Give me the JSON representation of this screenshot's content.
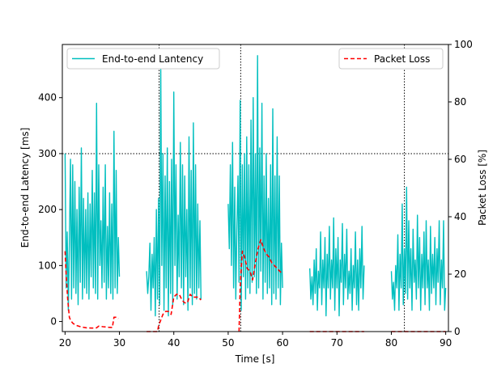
{
  "chart_data": {
    "type": "line",
    "xlabel": "Time [s]",
    "ylabel_left": "End-to-end Latency [ms]",
    "ylabel_right": "Packet Loss [%]",
    "xlim": [
      19.5,
      90.5
    ],
    "ylim_left": [
      -18,
      495
    ],
    "ylim_right": [
      0,
      100
    ],
    "x_ticks": [
      20,
      30,
      40,
      50,
      60,
      70,
      80,
      90
    ],
    "y_ticks_left": [
      0,
      100,
      200,
      300,
      400
    ],
    "y_ticks_right": [
      0,
      20,
      40,
      60,
      80,
      100
    ],
    "reference_lines": {
      "horizontal_latency_ms": 300,
      "vertical_time_s": [
        37.3,
        52.3,
        82.4
      ]
    },
    "legend": {
      "left": {
        "label": "End-to-end Lantency",
        "placement": "upper-left"
      },
      "right": {
        "label": "Packet Loss",
        "placement": "upper-right"
      }
    },
    "colors": {
      "latency": "#00bfbf",
      "loss": "#ff0000",
      "reference": "#000000"
    },
    "series": [
      {
        "name": "End-to-end Lantency",
        "axis": "left",
        "segments": [
          {
            "x": [
              20.0,
              20.2,
              20.4,
              20.6,
              20.8,
              21.0,
              21.2,
              21.4,
              21.6,
              21.8,
              22.0,
              22.2,
              22.4,
              22.6,
              22.8,
              23.0,
              23.2,
              23.4,
              23.6,
              23.8,
              24.0,
              24.2,
              24.4,
              24.6,
              24.8,
              25.0,
              25.2,
              25.4,
              25.6,
              25.8,
              26.0,
              26.2,
              26.4,
              26.6,
              26.8,
              27.0,
              27.2,
              27.4,
              27.6,
              27.8,
              28.0,
              28.2,
              28.4,
              28.6,
              28.8,
              29.0,
              29.2,
              29.4,
              29.6,
              29.8,
              30.0
            ],
            "y": [
              300,
              60,
              160,
              20,
              140,
              290,
              40,
              280,
              60,
              250,
              50,
              200,
              30,
              240,
              70,
              310,
              40,
              220,
              60,
              200,
              50,
              230,
              40,
              210,
              80,
              270,
              60,
              230,
              50,
              390,
              40,
              280,
              100,
              180,
              60,
              240,
              70,
              280,
              40,
              170,
              60,
              230,
              50,
              210,
              40,
              340,
              60,
              270,
              50,
              150,
              80
            ]
          },
          {
            "x": [
              35.0,
              35.2,
              35.4,
              35.6,
              35.8,
              36.0,
              36.2,
              36.4,
              36.6,
              36.8,
              37.0,
              37.2,
              37.4,
              37.6,
              37.8,
              38.0,
              38.2,
              38.4,
              38.6,
              38.8,
              39.0,
              39.2,
              39.4,
              39.6,
              39.8,
              40.0,
              40.2,
              40.4,
              40.6,
              40.8,
              41.0,
              41.2,
              41.4,
              41.6,
              41.8,
              42.0,
              42.2,
              42.4,
              42.6,
              42.8,
              43.0,
              43.2,
              43.4,
              43.6,
              43.8,
              44.0,
              44.2,
              44.4,
              44.6,
              44.8,
              45.0
            ],
            "y": [
              90,
              50,
              80,
              140,
              20,
              120,
              60,
              150,
              10,
              200,
              40,
              220,
              30,
              450,
              100,
              300,
              20,
              260,
              60,
              310,
              10,
              250,
              50,
              290,
              30,
              410,
              100,
              280,
              40,
              190,
              80,
              320,
              60,
              280,
              30,
              260,
              80,
              200,
              20,
              330,
              60,
              270,
              30,
              355,
              50,
              280,
              40,
              210,
              60,
              180,
              40
            ]
          },
          {
            "x": [
              50.0,
              50.2,
              50.4,
              50.6,
              50.8,
              51.0,
              51.2,
              51.4,
              51.6,
              51.8,
              52.0,
              52.2,
              52.4,
              52.6,
              52.8,
              53.0,
              53.2,
              53.4,
              53.6,
              53.8,
              54.0,
              54.2,
              54.4,
              54.6,
              54.8,
              55.0,
              55.2,
              55.4,
              55.6,
              55.8,
              56.0,
              56.2,
              56.4,
              56.6,
              56.8,
              57.0,
              57.2,
              57.4,
              57.6,
              57.8,
              58.0,
              58.2,
              58.4,
              58.6,
              58.8,
              59.0,
              59.2,
              59.4,
              59.6,
              59.8,
              60.0
            ],
            "y": [
              210,
              130,
              280,
              100,
              320,
              60,
              240,
              40,
              170,
              260,
              70,
              395,
              20,
              280,
              80,
              300,
              40,
              330,
              60,
              280,
              50,
              360,
              70,
              400,
              80,
              300,
              50,
              475,
              60,
              310,
              90,
              390,
              40,
              260,
              70,
              300,
              50,
              220,
              60,
              280,
              30,
              380,
              50,
              260,
              40,
              330,
              60,
              260,
              30,
              140,
              60
            ]
          },
          {
            "x": [
              65.0,
              65.2,
              65.4,
              65.6,
              65.8,
              66.0,
              66.2,
              66.4,
              66.6,
              66.8,
              67.0,
              67.2,
              67.4,
              67.6,
              67.8,
              68.0,
              68.2,
              68.4,
              68.6,
              68.8,
              69.0,
              69.2,
              69.4,
              69.6,
              69.8,
              70.0,
              70.2,
              70.4,
              70.6,
              70.8,
              71.0,
              71.2,
              71.4,
              71.6,
              71.8,
              72.0,
              72.2,
              72.4,
              72.6,
              72.8,
              73.0,
              73.2,
              73.4,
              73.6,
              73.8,
              74.0,
              74.2,
              74.4,
              74.6,
              74.8,
              75.0
            ],
            "y": [
              95,
              40,
              80,
              30,
              110,
              50,
              130,
              20,
              90,
              60,
              160,
              30,
              110,
              60,
              150,
              10,
              120,
              60,
              170,
              40,
              110,
              60,
              185,
              20,
              130,
              60,
              150,
              10,
              110,
              70,
              175,
              30,
              120,
              60,
              165,
              40,
              90,
              50,
              130,
              20,
              100,
              60,
              160,
              30,
              110,
              20,
              130,
              60,
              170,
              40,
              100
            ]
          },
          {
            "x": [
              80.0,
              80.2,
              80.4,
              80.6,
              80.8,
              81.0,
              81.2,
              81.4,
              81.6,
              81.8,
              82.0,
              82.2,
              82.4,
              82.6,
              82.8,
              83.0,
              83.2,
              83.4,
              83.6,
              83.8,
              84.0,
              84.2,
              84.4,
              84.6,
              84.8,
              85.0,
              85.2,
              85.4,
              85.6,
              85.8,
              86.0,
              86.2,
              86.4,
              86.6,
              86.8,
              87.0,
              87.2,
              87.4,
              87.6,
              87.8,
              88.0,
              88.2,
              88.4,
              88.6,
              88.8,
              89.0,
              89.2,
              89.4,
              89.6,
              89.8,
              90.0
            ],
            "y": [
              90,
              40,
              70,
              20,
              100,
              60,
              155,
              20,
              120,
              60,
              210,
              30,
              130,
              50,
              240,
              40,
              180,
              60,
              130,
              20,
              165,
              70,
              110,
              40,
              190,
              60,
              150,
              20,
              120,
              60,
              160,
              30,
              180,
              60,
              110,
              20,
              170,
              50,
              120,
              60,
              150,
              30,
              130,
              70,
              180,
              30,
              110,
              60,
              180,
              20,
              60
            ]
          }
        ]
      },
      {
        "name": "Packet Loss",
        "axis": "right",
        "segments": [
          {
            "x": [
              20.0,
              20.2,
              20.5,
              20.8,
              21.0,
              21.3,
              21.5,
              22.0,
              23.0,
              24.0,
              25.0,
              25.8,
              26.2,
              27.0,
              28.0,
              28.7,
              29.0,
              29.5,
              29.8
            ],
            "y": [
              28,
              20,
              11,
              5,
              4,
              3.2,
              2.8,
              2.2,
              1.6,
              1.3,
              1.2,
              1.3,
              1.9,
              1.7,
              1.5,
              1.4,
              5.0,
              5.0,
              4.5
            ]
          },
          {
            "x": [
              35.0,
              36.0,
              37.0,
              37.2,
              37.6,
              38.0,
              38.5,
              39.0,
              39.5,
              40.0,
              40.5,
              41.0,
              41.5,
              42.0,
              42.5,
              43.0,
              43.5,
              44.0,
              44.5,
              45.0
            ],
            "y": [
              0,
              0,
              0,
              2,
              4,
              6,
              7,
              7,
              6,
              12,
              13,
              13,
              11,
              10,
              10,
              13,
              12,
              12,
              12,
              11
            ]
          },
          {
            "x": [
              52.0,
              52.2,
              52.4,
              52.6,
              53.0,
              53.5,
              54.0,
              54.5,
              55.0,
              55.5,
              56.0,
              56.5,
              57.0,
              57.5,
              58.0,
              58.5,
              59.0,
              59.5,
              60.0
            ],
            "y": [
              0,
              15,
              22,
              28,
              26,
              22,
              21,
              18,
              24,
              29,
              32,
              29,
              27,
              26,
              24,
              23,
              22,
              21,
              20
            ]
          },
          {
            "x": [
              65.0,
              66.0,
              67.0,
              68.0,
              69.0,
              70.0,
              71.0,
              72.0,
              73.0,
              74.0,
              75.0
            ],
            "y": [
              0,
              0,
              0,
              0,
              0,
              0,
              0,
              0,
              0,
              0,
              0
            ]
          },
          {
            "x": [
              80.0,
              81.0,
              82.0,
              83.0,
              84.0,
              85.0,
              86.0,
              87.0,
              88.0,
              89.0,
              90.0
            ],
            "y": [
              0,
              0,
              0,
              0,
              0,
              0,
              0,
              0,
              0,
              0,
              0
            ]
          }
        ]
      }
    ]
  }
}
